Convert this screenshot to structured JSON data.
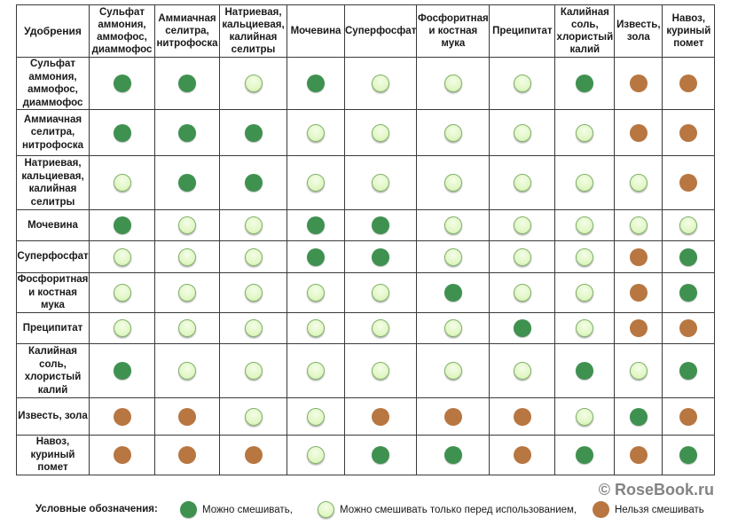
{
  "table": {
    "corner": "Удобрения",
    "columns": [
      "Сульфат аммония, аммофос, диаммофос",
      "Аммиачная селитра, нитрофоска",
      "Натриевая, кальциевая, калийная селитры",
      "Мочевина",
      "Суперфосфат",
      "Фосфоритная и костная мука",
      "Преципитат",
      "Калийная соль, хлористый калий",
      "Известь, зола",
      "Навоз, куриный помет"
    ],
    "rows": [
      {
        "label": "Сульфат аммония, аммофос, диаммофос",
        "cells": [
          "yes",
          "yes",
          "pre",
          "yes",
          "pre",
          "pre",
          "pre",
          "yes",
          "no",
          "no"
        ]
      },
      {
        "label": "Аммиачная селитра, нитрофоска",
        "cells": [
          "yes",
          "yes",
          "yes",
          "pre",
          "pre",
          "pre",
          "pre",
          "pre",
          "no",
          "no"
        ]
      },
      {
        "label": "Натриевая, кальциевая, калийная селитры",
        "cells": [
          "pre",
          "yes",
          "yes",
          "pre",
          "pre",
          "pre",
          "pre",
          "pre",
          "pre",
          "no"
        ]
      },
      {
        "label": "Мочевина",
        "cells": [
          "yes",
          "pre",
          "pre",
          "yes",
          "yes",
          "pre",
          "pre",
          "pre",
          "pre",
          "pre"
        ]
      },
      {
        "label": "Суперфосфат",
        "cells": [
          "pre",
          "pre",
          "pre",
          "yes",
          "yes",
          "pre",
          "pre",
          "pre",
          "no",
          "yes"
        ]
      },
      {
        "label": "Фосфоритная и костная мука",
        "cells": [
          "pre",
          "pre",
          "pre",
          "pre",
          "pre",
          "yes",
          "pre",
          "pre",
          "no",
          "yes"
        ]
      },
      {
        "label": "Преципитат",
        "cells": [
          "pre",
          "pre",
          "pre",
          "pre",
          "pre",
          "pre",
          "yes",
          "pre",
          "no",
          "no"
        ]
      },
      {
        "label": "Калийная соль, хлористый калий",
        "cells": [
          "yes",
          "pre",
          "pre",
          "pre",
          "pre",
          "pre",
          "pre",
          "yes",
          "pre",
          "yes"
        ]
      },
      {
        "label": "Известь, зола",
        "cells": [
          "no",
          "no",
          "pre",
          "pre",
          "no",
          "no",
          "no",
          "pre",
          "yes",
          "no"
        ]
      },
      {
        "label": "Навоз, куриный помет",
        "cells": [
          "no",
          "no",
          "no",
          "pre",
          "yes",
          "yes",
          "no",
          "yes",
          "no",
          "yes"
        ]
      }
    ]
  },
  "legend": {
    "title": "Условные обозначения:",
    "items": [
      {
        "key": "yes",
        "label": "Можно смешивать,"
      },
      {
        "key": "pre",
        "label": "Можно смешивать только перед использованием,"
      },
      {
        "key": "no",
        "label": "Нельзя смешивать"
      }
    ]
  },
  "colors": {
    "yes": "#3f9150",
    "pre": "#e2f7c6",
    "no": "#b87640",
    "grid": "#3a3a3a"
  },
  "watermark": "© RoseBook.ru"
}
